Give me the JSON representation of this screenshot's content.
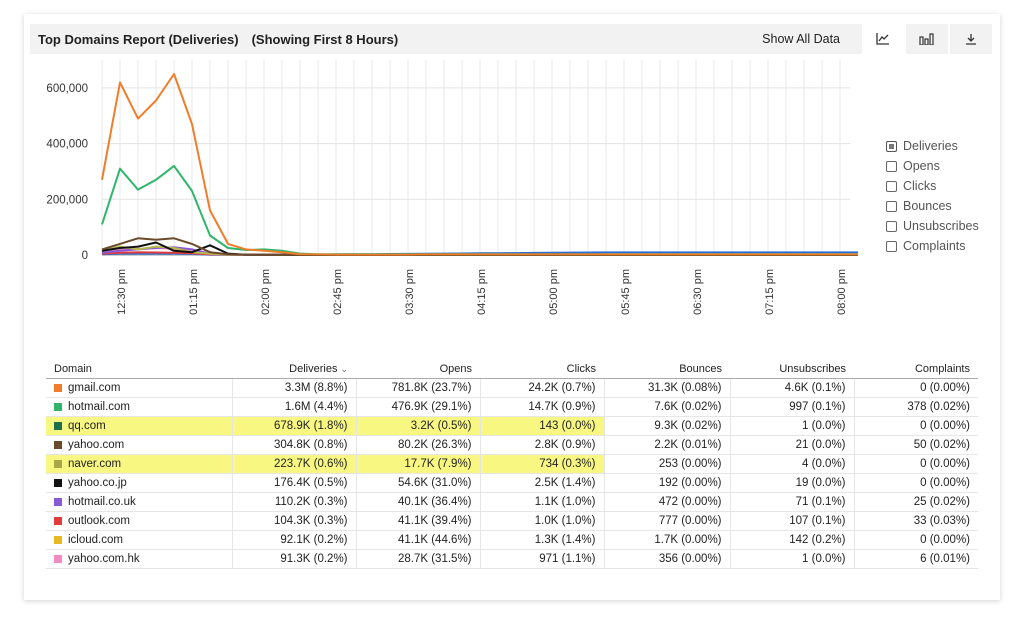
{
  "header": {
    "title": "Top Domains Report (Deliveries)",
    "subtitle": "(Showing First 8 Hours)",
    "show_all": "Show All Data"
  },
  "toolbar": {
    "buttons": [
      {
        "name": "line-chart-icon",
        "active": true
      },
      {
        "name": "bar-chart-icon",
        "active": false
      },
      {
        "name": "download-icon",
        "active": false
      }
    ]
  },
  "chart_data": {
    "type": "line",
    "x_ticks": [
      "12:30 pm",
      "01:15 pm",
      "02:00 pm",
      "02:45 pm",
      "03:30 pm",
      "04:15 pm",
      "05:00 pm",
      "05:45 pm",
      "06:30 pm",
      "07:15 pm",
      "08:00 pm"
    ],
    "y_ticks": [
      "600,000",
      "400,000",
      "200,000",
      "0"
    ],
    "ylim": [
      0,
      650000
    ],
    "grid": true,
    "series": [
      {
        "name": "gmail.com",
        "color": "#f07d2a",
        "values": [
          270000,
          620000,
          490000,
          555000,
          650000,
          470000,
          160000,
          40000,
          20000,
          15000,
          10000,
          3000,
          2000,
          1500,
          1500,
          1500,
          1500,
          1500,
          2000,
          2000,
          2000,
          2000,
          2000,
          2000,
          2000,
          2000,
          2000,
          2000,
          2000,
          2000,
          2000,
          2000,
          2000,
          2000,
          2000,
          2000,
          2000,
          2000,
          2000,
          2000,
          2000,
          2000,
          2000
        ]
      },
      {
        "name": "hotmail.com",
        "color": "#2fb66b",
        "values": [
          110000,
          310000,
          235000,
          270000,
          320000,
          230000,
          70000,
          25000,
          18000,
          20000,
          15000,
          5000,
          3000,
          2500,
          2500,
          2500,
          2500,
          2500,
          2500,
          2500,
          2500,
          2500,
          2500,
          2500,
          2500,
          2500,
          2500,
          2500,
          2500,
          2500,
          2500,
          2500,
          2500,
          2500,
          2500,
          2500,
          2500,
          2500,
          2500,
          2500,
          2500,
          2500,
          2500
        ]
      },
      {
        "name": "yahoo.com",
        "color": "#6b4a2b",
        "values": [
          20000,
          40000,
          60000,
          55000,
          60000,
          40000,
          10000,
          3000,
          1500,
          1200,
          1000,
          800,
          800,
          800,
          800,
          800,
          800,
          800,
          800,
          800,
          800,
          800,
          800,
          800,
          800,
          800,
          800,
          800,
          800,
          800,
          800,
          800,
          800,
          800,
          800,
          800,
          800,
          800,
          800,
          800,
          800,
          800,
          800
        ]
      },
      {
        "name": "yahoo.co.jp",
        "color": "#111111",
        "values": [
          15000,
          25000,
          30000,
          45000,
          15000,
          10000,
          35000,
          5000,
          1000,
          800,
          600,
          500,
          500,
          500,
          500,
          500,
          500,
          500,
          500,
          500,
          500,
          500,
          500,
          500,
          500,
          500,
          500,
          500,
          500,
          500,
          500,
          500,
          500,
          500,
          500,
          500,
          500,
          500,
          500,
          500,
          500,
          500,
          500
        ]
      },
      {
        "name": "naver.com",
        "color": "#b5b84a",
        "values": [
          15000,
          30000,
          20000,
          30000,
          25000,
          10000,
          5000,
          1500,
          800,
          600,
          500,
          400,
          400,
          400,
          400,
          400,
          400,
          400,
          400,
          400,
          400,
          400,
          400,
          400,
          400,
          400,
          400,
          400,
          400,
          400,
          400,
          400,
          400,
          400,
          400,
          400,
          400,
          400,
          400,
          400,
          400,
          400,
          400
        ]
      },
      {
        "name": "hotmail.co.uk",
        "color": "#8a5ad6",
        "values": [
          8000,
          15000,
          20000,
          25000,
          28000,
          20000,
          5000,
          1500,
          800,
          600,
          500,
          400,
          400,
          400,
          400,
          400,
          400,
          400,
          400,
          400,
          400,
          400,
          400,
          400,
          400,
          400,
          400,
          400,
          400,
          400,
          400,
          400,
          400,
          400,
          400,
          400,
          400,
          400,
          400,
          400,
          400,
          400,
          400
        ]
      },
      {
        "name": "yahoo.com.hk",
        "color": "#f28ac6",
        "values": [
          10000,
          18000,
          22000,
          25000,
          22000,
          15000,
          4000,
          1000,
          600,
          500,
          400,
          300,
          300,
          300,
          300,
          300,
          300,
          300,
          300,
          300,
          300,
          300,
          300,
          300,
          300,
          300,
          300,
          300,
          300,
          300,
          300,
          300,
          300,
          300,
          300,
          300,
          300,
          300,
          300,
          300,
          300,
          300,
          300
        ]
      },
      {
        "name": "outlook.com",
        "color": "#e23b3b",
        "values": [
          5000,
          8000,
          10000,
          9000,
          8000,
          6000,
          2000,
          800,
          500,
          400,
          300,
          300,
          300,
          300,
          300,
          300,
          300,
          300,
          300,
          300,
          300,
          300,
          300,
          300,
          300,
          300,
          300,
          300,
          300,
          300,
          300,
          300,
          300,
          300,
          300,
          300,
          300,
          300,
          300,
          300,
          300,
          300,
          300
        ]
      },
      {
        "name": "qq.com",
        "color": "#2a6fd6",
        "values": [
          3000,
          5000,
          5000,
          5000,
          5000,
          4000,
          1000,
          500,
          500,
          500,
          1000,
          1000,
          1500,
          2000,
          2500,
          3000,
          3500,
          4000,
          4500,
          5000,
          5500,
          6000,
          6500,
          7000,
          7500,
          8000,
          8500,
          9000,
          9500,
          9500,
          9500,
          9500,
          9500,
          9500,
          9500,
          9500,
          9500,
          9500,
          9500,
          9500,
          9500,
          9500,
          9500
        ]
      }
    ]
  },
  "legend": [
    {
      "label": "Deliveries",
      "checked": true
    },
    {
      "label": "Opens",
      "checked": false
    },
    {
      "label": "Clicks",
      "checked": false
    },
    {
      "label": "Bounces",
      "checked": false
    },
    {
      "label": "Unsubscribes",
      "checked": false
    },
    {
      "label": "Complaints",
      "checked": false
    }
  ],
  "table": {
    "columns": [
      "Domain",
      "Deliveries",
      "Opens",
      "Clicks",
      "Bounces",
      "Unsubscribes",
      "Complaints"
    ],
    "sort_indicator": "⌄",
    "rows": [
      {
        "domain": "gmail.com",
        "color": "#f07d2a",
        "cells": [
          "3.3M (8.8%)",
          "781.8K (23.7%)",
          "24.2K (0.7%)",
          "31.3K (0.08%)",
          "4.6K (0.1%)",
          "0 (0.00%)"
        ],
        "highlight": false
      },
      {
        "domain": "hotmail.com",
        "color": "#2fb66b",
        "cells": [
          "1.6M (4.4%)",
          "476.9K (29.1%)",
          "14.7K (0.9%)",
          "7.6K (0.02%)",
          "997 (0.1%)",
          "378 (0.02%)"
        ],
        "highlight": false
      },
      {
        "domain": "qq.com",
        "color": "#1f6e4b",
        "cells": [
          "678.9K (1.8%)",
          "3.2K (0.5%)",
          "143 (0.0%)",
          "9.3K (0.02%)",
          "1 (0.0%)",
          "0 (0.00%)"
        ],
        "highlight": true
      },
      {
        "domain": "yahoo.com",
        "color": "#6b4a2b",
        "cells": [
          "304.8K (0.8%)",
          "80.2K (26.3%)",
          "2.8K (0.9%)",
          "2.2K (0.01%)",
          "21 (0.0%)",
          "50 (0.02%)"
        ],
        "highlight": false
      },
      {
        "domain": "naver.com",
        "color": "#a8a84a",
        "cells": [
          "223.7K (0.6%)",
          "17.7K (7.9%)",
          "734 (0.3%)",
          "253 (0.00%)",
          "4 (0.0%)",
          "0 (0.00%)"
        ],
        "highlight": true
      },
      {
        "domain": "yahoo.co.jp",
        "color": "#111111",
        "cells": [
          "176.4K (0.5%)",
          "54.6K (31.0%)",
          "2.5K (1.4%)",
          "192 (0.00%)",
          "19 (0.0%)",
          "0 (0.00%)"
        ],
        "highlight": false
      },
      {
        "domain": "hotmail.co.uk",
        "color": "#8a5ad6",
        "cells": [
          "110.2K (0.3%)",
          "40.1K (36.4%)",
          "1.1K (1.0%)",
          "472 (0.00%)",
          "71 (0.1%)",
          "25 (0.02%)"
        ],
        "highlight": false
      },
      {
        "domain": "outlook.com",
        "color": "#e23b3b",
        "cells": [
          "104.3K (0.3%)",
          "41.1K (39.4%)",
          "1.0K (1.0%)",
          "777 (0.00%)",
          "107 (0.1%)",
          "33 (0.03%)"
        ],
        "highlight": false
      },
      {
        "domain": "icloud.com",
        "color": "#e8b923",
        "cells": [
          "92.1K (0.2%)",
          "41.1K (44.6%)",
          "1.3K (1.4%)",
          "1.7K (0.00%)",
          "142 (0.2%)",
          "0 (0.00%)"
        ],
        "highlight": false
      },
      {
        "domain": "yahoo.com.hk",
        "color": "#f28ac6",
        "cells": [
          "91.3K (0.2%)",
          "28.7K (31.5%)",
          "971 (1.1%)",
          "356 (0.00%)",
          "1 (0.0%)",
          "6 (0.01%)"
        ],
        "highlight": false
      }
    ]
  }
}
